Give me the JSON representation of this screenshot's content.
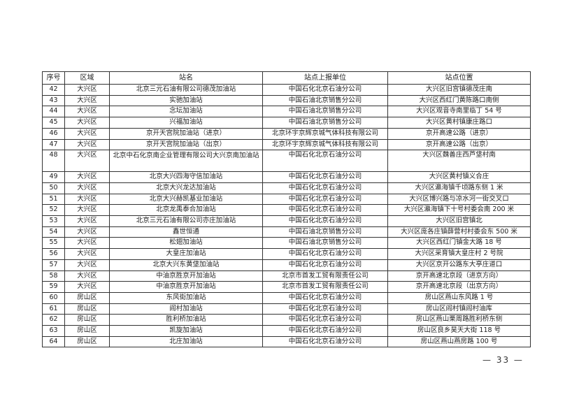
{
  "table": {
    "headers": [
      "序号",
      "区域",
      "站名",
      "站点上报单位",
      "站点位置"
    ],
    "rows": [
      [
        "42",
        "大兴区",
        "北京三元石油有限公司德茂加油站",
        "中国石化北京石油分公司",
        "大兴区旧宫镇德茂庄南"
      ],
      [
        "43",
        "大兴区",
        "实驰加油站",
        "中国石油北京销售分公司",
        "大兴区西红门黄陈路口南侧"
      ],
      [
        "44",
        "大兴区",
        "念坛加油站",
        "中国石油北京销售分公司",
        "大兴区观音寺南里临丁 54 号"
      ],
      [
        "45",
        "大兴区",
        "兴福加油站",
        "中国石油北京销售分公司",
        "大兴区黄村镇康庄路口"
      ],
      [
        "46",
        "大兴区",
        "京开天宫院加油站（进京）",
        "北京环宇京辉京城气体科技有限公司",
        "京开高速公路（进京）"
      ],
      [
        "47",
        "大兴区",
        "京开天宫院加油站（出京）",
        "北京环宇京辉京城气体科技有限公司",
        "京开高速公路（出京）"
      ],
      [
        "48",
        "大兴区",
        "北京中石化京南企业管理有限公司大兴京南加油站",
        "中国石化北京石油分公司",
        "大兴区魏善庄西芦垡村南"
      ],
      [
        "49",
        "大兴区",
        "北京大兴四海守信加油站",
        "中国石化北京石油分公司",
        "大兴区黄村镇义合庄"
      ],
      [
        "50",
        "大兴区",
        "北京大兴龙达加油站",
        "中国石化北京石油分公司",
        "大兴区瀛海镇千顷路东侧 1 米"
      ],
      [
        "51",
        "大兴区",
        "北京大兴赫凯基业加油站",
        "中国石化北京石油分公司",
        "大兴区博兴路与凉水河一街交叉口"
      ],
      [
        "52",
        "大兴区",
        "北京龙禹泰合加油站",
        "中国石化北京石油分公司",
        "大兴区瀛海镇下十号村委会南 200 米"
      ],
      [
        "53",
        "大兴区",
        "北京三元石油有限公司亦庄加油站",
        "中国石化北京石油分公司",
        "大兴区旧宫镇北"
      ],
      [
        "54",
        "大兴区",
        "鑫世恒通",
        "中国石油北京销售分公司",
        "大兴区庞各庄镇薛营村村委会东 500 米"
      ],
      [
        "55",
        "大兴区",
        "松翅加油站",
        "中国石油北京销售分公司",
        "大兴区西红门镇金大路 18 号"
      ],
      [
        "56",
        "大兴区",
        "大皇庄加油站",
        "中国石化北京石油分公司",
        "大兴区采育镇大皇庄村 2 号院"
      ],
      [
        "57",
        "大兴区",
        "北京大兴东黄垡加油站",
        "中国石化北京石油分公司",
        "大兴区京开公路东大亭庄道口"
      ],
      [
        "58",
        "大兴区",
        "中油京胜京开加油站",
        "北京市首发工贸有限责任公司",
        "京开高速北京段（进京方向）"
      ],
      [
        "59",
        "大兴区",
        "中油京胜京开加油站",
        "北京市首发工贸有限责任公司",
        "京开高速北京段（出京方向）"
      ],
      [
        "60",
        "房山区",
        "东风街加油站",
        "中国石化北京石油分公司",
        "房山区燕山东风路 1 号"
      ],
      [
        "61",
        "房山区",
        "阎村加油站",
        "中国石化北京石油分公司",
        "房山区阎村镇阎村油库"
      ],
      [
        "62",
        "房山区",
        "胜利桥加油站",
        "中国石化北京石油分公司",
        "房山区燕山栗周路胜利桥东侧"
      ],
      [
        "63",
        "房山区",
        "凯旋加油站",
        "中国石化北京石油分公司",
        "房山区良乡昊天大街 118 号"
      ],
      [
        "64",
        "房山区",
        "北庄加油站",
        "中国石化北京石油分公司",
        "房山区燕山燕房路 100 号"
      ]
    ]
  },
  "page_number": "— 33 —"
}
